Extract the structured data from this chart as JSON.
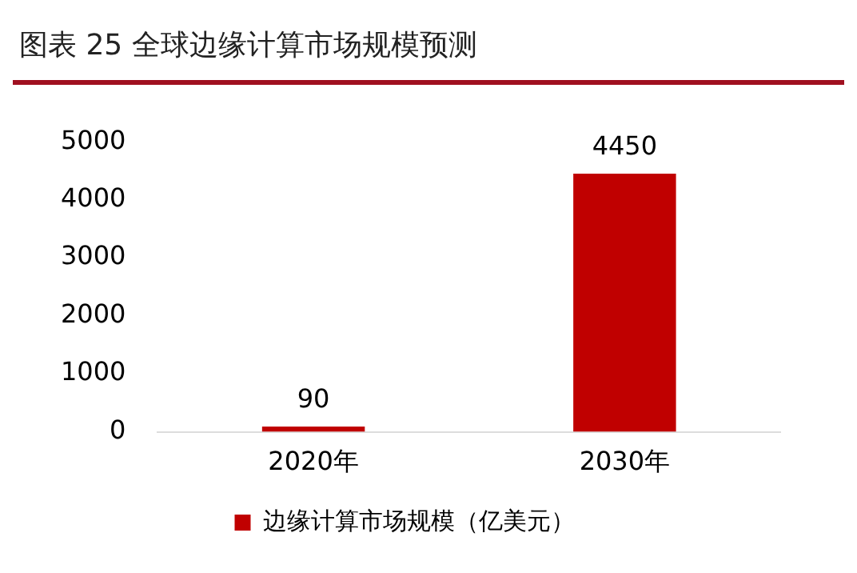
{
  "chart_data": {
    "type": "bar",
    "title": "图表 25 全球边缘计算市场规模预测",
    "categories": [
      "2020年",
      "2030年"
    ],
    "series": [
      {
        "name": "边缘计算市场规模（亿美元）",
        "color": "#c00000",
        "values": [
          90,
          4450
        ]
      }
    ],
    "ylim": [
      0,
      5000
    ],
    "yticks": [
      0,
      1000,
      2000,
      3000,
      4000,
      5000
    ],
    "grid": false,
    "legend": "bottom",
    "data_labels": true
  }
}
